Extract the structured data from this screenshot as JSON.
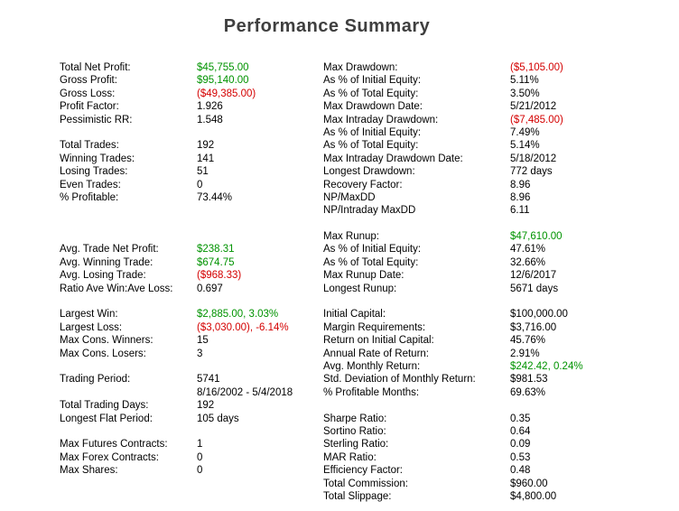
{
  "title": "Performance Summary",
  "palette": {
    "green": "#009300",
    "red": "#d40000",
    "text": "#000000",
    "title_color": "#3f3f3f",
    "background": "#ffffff"
  },
  "summary": {
    "rows": [
      {
        "left": {
          "label": "Total Net Profit:",
          "value": "$45,755.00",
          "tone": "green"
        },
        "right": {
          "label": "Max Drawdown:",
          "value": "($5,105.00)",
          "tone": "red"
        }
      },
      {
        "left": {
          "label": "Gross Profit:",
          "value": "$95,140.00",
          "tone": "green"
        },
        "right": {
          "label": "As % of Initial Equity:",
          "value": "5.11%"
        }
      },
      {
        "left": {
          "label": "Gross Loss:",
          "value": "($49,385.00)",
          "tone": "red"
        },
        "right": {
          "label": "As % of Total Equity:",
          "value": "3.50%"
        }
      },
      {
        "left": {
          "label": "Profit Factor:",
          "value": "1.926"
        },
        "right": {
          "label": "Max Drawdown Date:",
          "value": "5/21/2012"
        }
      },
      {
        "left": {
          "label": "Pessimistic RR:",
          "value": "1.548"
        },
        "right": {
          "label": "Max Intraday Drawdown:",
          "value": "($7,485.00)",
          "tone": "red"
        }
      },
      {
        "left": null,
        "right": {
          "label": "As % of Initial Equity:",
          "value": "7.49%"
        }
      },
      {
        "left": {
          "label": "Total Trades:",
          "value": "192"
        },
        "right": {
          "label": "As % of Total Equity:",
          "value": "5.14%"
        }
      },
      {
        "left": {
          "label": "Winning Trades:",
          "value": "141"
        },
        "right": {
          "label": "Max Intraday Drawdown Date:",
          "value": "5/18/2012"
        }
      },
      {
        "left": {
          "label": "Losing Trades:",
          "value": "51"
        },
        "right": {
          "label": "Longest Drawdown:",
          "value": "772 days"
        }
      },
      {
        "left": {
          "label": "Even Trades:",
          "value": "0"
        },
        "right": {
          "label": "Recovery Factor:",
          "value": "8.96"
        }
      },
      {
        "left": {
          "label": "% Profitable:",
          "value": "73.44%"
        },
        "right": {
          "label": "NP/MaxDD",
          "value": "8.96"
        }
      },
      {
        "left": null,
        "right": {
          "label": "NP/Intraday MaxDD",
          "value": "6.11"
        }
      },
      {
        "left": null,
        "right": null
      },
      {
        "left": null,
        "right": {
          "label": "Max Runup:",
          "value": "$47,610.00",
          "tone": "green"
        }
      },
      {
        "left": {
          "label": "Avg. Trade Net Profit:",
          "value": "$238.31",
          "tone": "green"
        },
        "right": {
          "label": "As % of Initial Equity:",
          "value": "47.61%"
        }
      },
      {
        "left": {
          "label": "Avg. Winning Trade:",
          "value": "$674.75",
          "tone": "green"
        },
        "right": {
          "label": "As % of Total Equity:",
          "value": "32.66%"
        }
      },
      {
        "left": {
          "label": "Avg. Losing Trade:",
          "value": "($968.33)",
          "tone": "red"
        },
        "right": {
          "label": "Max Runup Date:",
          "value": "12/6/2017"
        }
      },
      {
        "left": {
          "label": "Ratio Ave Win:Ave Loss:",
          "value": "0.697"
        },
        "right": {
          "label": "Longest Runup:",
          "value": "5671 days"
        }
      },
      {
        "left": null,
        "right": null
      },
      {
        "left": {
          "label": "Largest Win:",
          "value": "$2,885.00, 3.03%",
          "tone": "green"
        },
        "right": {
          "label": "Initial Capital:",
          "value": "$100,000.00"
        }
      },
      {
        "left": {
          "label": "Largest Loss:",
          "value": "($3,030.00), -6.14%",
          "tone": "red"
        },
        "right": {
          "label": "Margin Requirements:",
          "value": "$3,716.00"
        }
      },
      {
        "left": {
          "label": "Max Cons. Winners:",
          "value": "15"
        },
        "right": {
          "label": "Return on Initial Capital:",
          "value": "45.76%"
        }
      },
      {
        "left": {
          "label": "Max Cons. Losers:",
          "value": "3"
        },
        "right": {
          "label": "Annual Rate of Return:",
          "value": "2.91%"
        }
      },
      {
        "left": null,
        "right": {
          "label": "Avg. Monthly Return:",
          "value": "$242.42, 0.24%",
          "tone": "green"
        }
      },
      {
        "left": {
          "label": "Trading Period:",
          "value": "5741"
        },
        "right": {
          "label": "Std. Deviation of Monthly Return:",
          "value": "$981.53"
        }
      },
      {
        "left": {
          "label": "",
          "value": "8/16/2002 - 5/4/2018"
        },
        "right": {
          "label": "% Profitable Months:",
          "value": "69.63%"
        }
      },
      {
        "left": {
          "label": "Total Trading Days:",
          "value": "192"
        },
        "right": null
      },
      {
        "left": {
          "label": "Longest Flat Period:",
          "value": "105 days"
        },
        "right": {
          "label": "Sharpe Ratio:",
          "value": "0.35"
        }
      },
      {
        "left": null,
        "right": {
          "label": "Sortino Ratio:",
          "value": "0.64"
        }
      },
      {
        "left": {
          "label": "Max Futures Contracts:",
          "value": "1"
        },
        "right": {
          "label": "Sterling Ratio:",
          "value": "0.09"
        }
      },
      {
        "left": {
          "label": "Max Forex Contracts:",
          "value": "0"
        },
        "right": {
          "label": "MAR Ratio:",
          "value": "0.53"
        }
      },
      {
        "left": {
          "label": "Max Shares:",
          "value": "0"
        },
        "right": {
          "label": "Efficiency Factor:",
          "value": "0.48"
        }
      },
      {
        "left": null,
        "right": {
          "label": "Total Commission:",
          "value": "$960.00"
        }
      },
      {
        "left": null,
        "right": {
          "label": "Total Slippage:",
          "value": "$4,800.00"
        }
      }
    ]
  }
}
